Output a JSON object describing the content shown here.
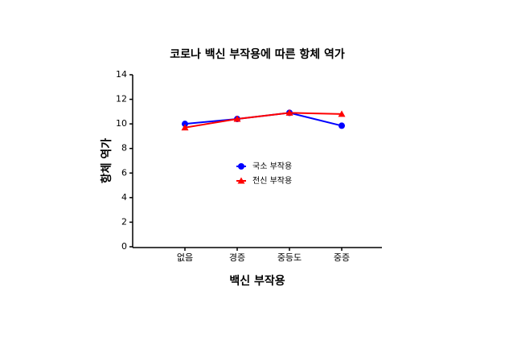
{
  "chart_data": {
    "type": "line",
    "title": "코로나 백신 부작용에 따른 항체 역가",
    "x_label": "백신 부작용",
    "y_label": "항체 역가",
    "categories": [
      "없음",
      "경증",
      "중등도",
      "중증"
    ],
    "series": [
      {
        "name": "국소 부작용",
        "color": "#0000ff",
        "marker": "circle",
        "values": [
          10.0,
          10.4,
          10.9,
          9.85
        ]
      },
      {
        "name": "전신 부작용",
        "color": "#ff0000",
        "marker": "triangle",
        "values": [
          9.7,
          10.4,
          10.9,
          10.8
        ]
      }
    ],
    "ylim": [
      0,
      14
    ],
    "yticks": [
      0,
      2,
      4,
      6,
      8,
      10,
      12,
      14
    ],
    "grid": false,
    "legend": "center"
  }
}
